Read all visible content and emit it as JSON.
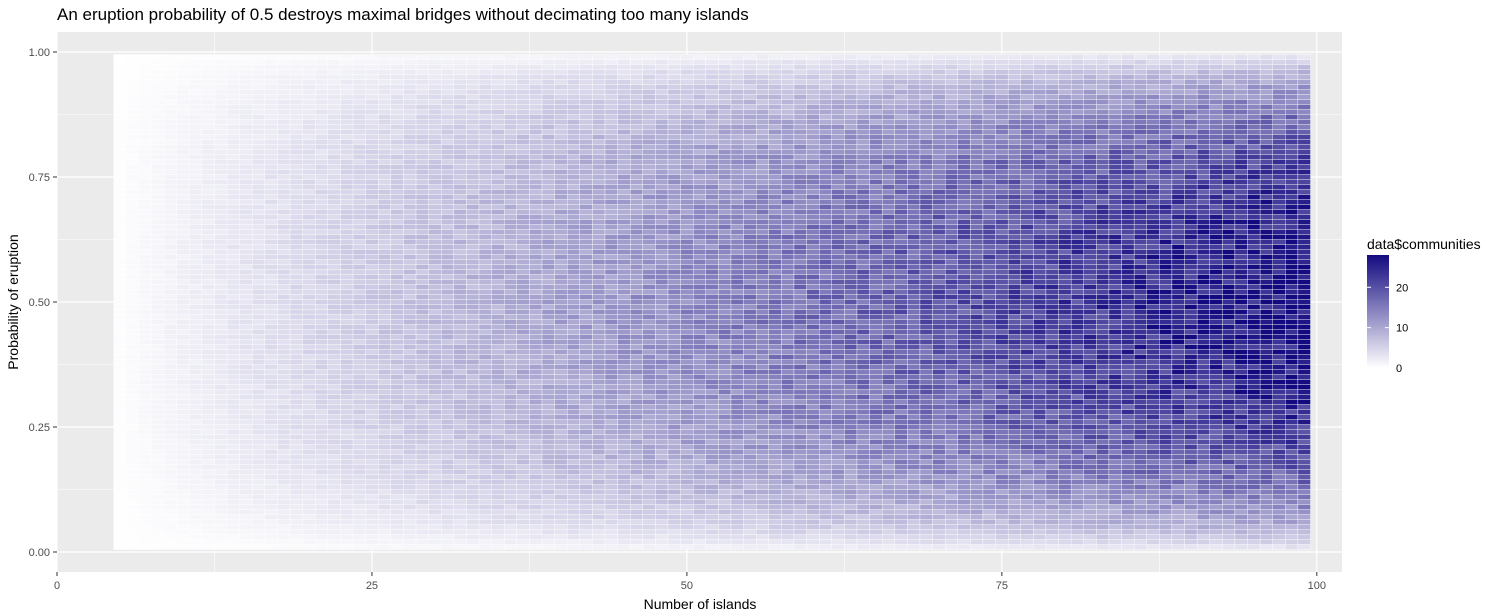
{
  "chart_data": {
    "type": "heatmap",
    "title": "An eruption probability of 0.5 destroys maximal bridges without decimating too many islands",
    "xlabel": "Number of islands",
    "ylabel": "Probability of eruption",
    "xlim": [
      0,
      102
    ],
    "ylim": [
      -0.04,
      1.04
    ],
    "x_ticks": [
      0,
      25,
      50,
      75,
      100
    ],
    "x_tick_labels": [
      "0",
      "25",
      "50",
      "75",
      "100"
    ],
    "y_ticks": [
      0,
      0.25,
      0.5,
      0.75,
      1
    ],
    "y_tick_labels": [
      "0.00",
      "0.25",
      "0.50",
      "0.75",
      "1.00"
    ],
    "x_range": [
      5,
      99
    ],
    "x_step": 1,
    "y_range": [
      0.01,
      0.99
    ],
    "y_step": 0.01,
    "fill_variable": "data$communities",
    "fill_range": [
      0,
      28
    ],
    "fill_peak_at_y": 0.5,
    "low_color": "#ffffff",
    "high_color": "#140a80",
    "grid": true,
    "legend": {
      "title": "data$communities",
      "position": "right",
      "ticks": [
        0,
        10,
        20
      ],
      "tick_labels": [
        "0",
        "10",
        "20"
      ]
    }
  }
}
